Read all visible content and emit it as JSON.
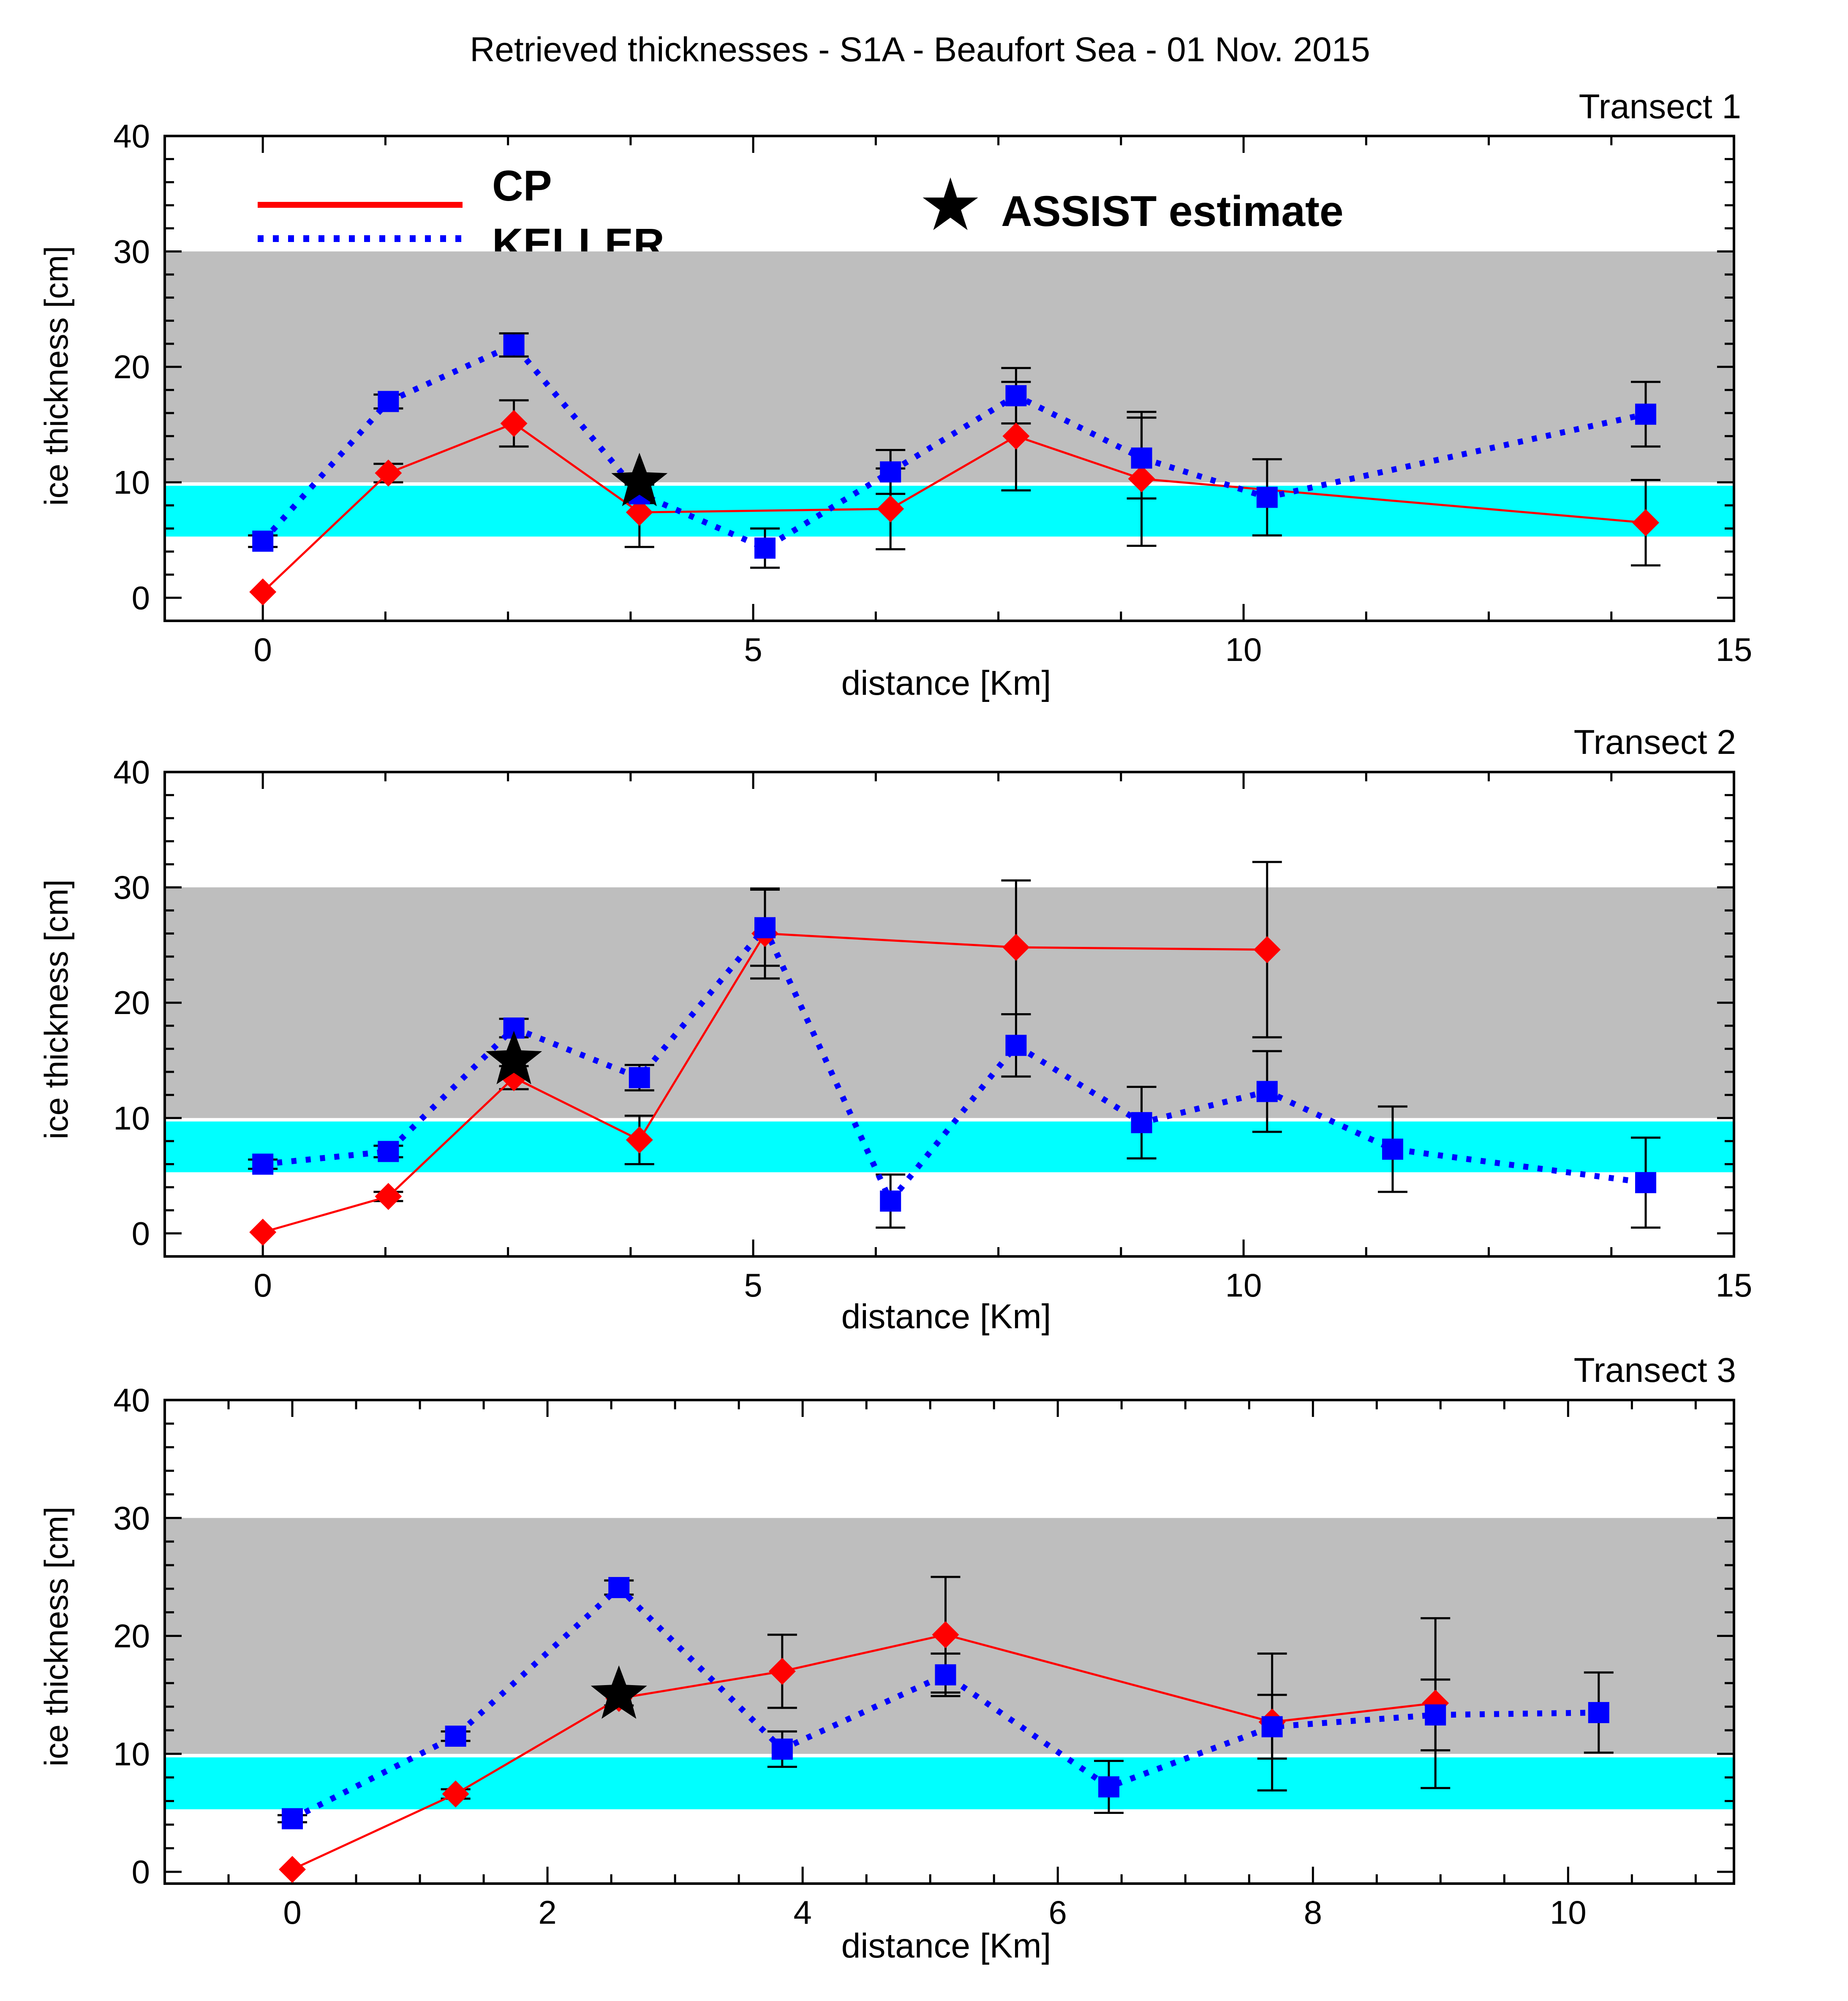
{
  "figure": {
    "title": "Retrieved thicknesses - S1A - Beaufort Sea - 01 Nov. 2015"
  },
  "legend": {
    "cp_label": "CP",
    "keller_label": "KELLER",
    "assist_label": "ASSIST estimate"
  },
  "colors": {
    "cp": "#ff0000",
    "keller": "#0000ff",
    "gray_band": "#bebebe",
    "cyan_band": "#00ffff",
    "star": "#000000"
  },
  "chart_data": [
    {
      "type": "line",
      "panel_title": "Transect 1",
      "xlabel": "distance [Km]",
      "ylabel": "ice thickness [cm]",
      "xlim": [
        -1,
        15
      ],
      "ylim": [
        -2,
        40
      ],
      "xticks": [
        0,
        5,
        10,
        15
      ],
      "yticks": [
        0,
        10,
        20,
        30,
        40
      ],
      "xtick_labels": [
        "0",
        "5",
        "10",
        "15"
      ],
      "ytick_labels": [
        "0",
        "10",
        "20",
        "30",
        "40"
      ],
      "bands": [
        {
          "name": "gray",
          "from": 10,
          "to": 30
        },
        {
          "name": "cyan",
          "from": 5.3,
          "to": 9.7
        }
      ],
      "series": [
        {
          "name": "CP",
          "points": [
            {
              "x": 0,
              "y": 0.5,
              "err": 0
            },
            {
              "x": 1.28,
              "y": 10.8,
              "err": 0.8
            },
            {
              "x": 2.56,
              "y": 15.1,
              "err": 2.0
            },
            {
              "x": 3.84,
              "y": 7.4,
              "err": 3.0
            },
            {
              "x": 6.4,
              "y": 7.7,
              "err": 3.5
            },
            {
              "x": 7.68,
              "y": 14.0,
              "err": 4.7
            },
            {
              "x": 8.96,
              "y": 10.3,
              "err": 5.8
            },
            {
              "x": 14.1,
              "y": 6.5,
              "err": 3.7
            }
          ]
        },
        {
          "name": "KELLER",
          "points": [
            {
              "x": 0,
              "y": 4.9,
              "err": 0.5
            },
            {
              "x": 1.28,
              "y": 17.0,
              "err": 0.6
            },
            {
              "x": 2.56,
              "y": 21.9,
              "err": 1.0
            },
            {
              "x": 3.84,
              "y": 9.0,
              "err": 0.8
            },
            {
              "x": 5.12,
              "y": 4.3,
              "err": 1.7
            },
            {
              "x": 6.4,
              "y": 10.9,
              "err": 1.9
            },
            {
              "x": 7.68,
              "y": 17.5,
              "err": 2.4
            },
            {
              "x": 8.96,
              "y": 12.1,
              "err": 3.5
            },
            {
              "x": 10.24,
              "y": 8.7,
              "err": 3.3
            },
            {
              "x": 14.1,
              "y": 15.9,
              "err": 2.8
            }
          ]
        }
      ],
      "assist_estimate": {
        "x": 3.84,
        "y": 10.0
      }
    },
    {
      "type": "line",
      "panel_title": "Transect 2",
      "xlabel": "distance [Km]",
      "ylabel": "ice thickness [cm]",
      "xlim": [
        -1,
        15
      ],
      "ylim": [
        -2,
        40
      ],
      "xticks": [
        0,
        5,
        10,
        15
      ],
      "yticks": [
        0,
        10,
        20,
        30,
        40
      ],
      "xtick_labels": [
        "0",
        "5",
        "10",
        "15"
      ],
      "ytick_labels": [
        "0",
        "10",
        "20",
        "30",
        "40"
      ],
      "bands": [
        {
          "name": "gray",
          "from": 10,
          "to": 30
        },
        {
          "name": "cyan",
          "from": 5.3,
          "to": 9.7
        }
      ],
      "series": [
        {
          "name": "CP",
          "points": [
            {
              "x": 0,
              "y": 0.1,
              "err": 0
            },
            {
              "x": 1.28,
              "y": 3.2,
              "err": 0.4
            },
            {
              "x": 2.56,
              "y": 13.5,
              "err": 1.0
            },
            {
              "x": 3.84,
              "y": 8.1,
              "err": 2.1
            },
            {
              "x": 5.12,
              "y": 26.0,
              "err": 3.9
            },
            {
              "x": 7.68,
              "y": 24.8,
              "err": 5.8
            },
            {
              "x": 10.24,
              "y": 24.6,
              "err": 7.6
            }
          ]
        },
        {
          "name": "KELLER",
          "points": [
            {
              "x": 0,
              "y": 6.0,
              "err": 0.4
            },
            {
              "x": 1.28,
              "y": 7.1,
              "err": 0.5
            },
            {
              "x": 2.56,
              "y": 17.8,
              "err": 0.8
            },
            {
              "x": 3.84,
              "y": 13.5,
              "err": 1.1
            },
            {
              "x": 5.12,
              "y": 26.5,
              "err": 3.3
            },
            {
              "x": 6.4,
              "y": 2.8,
              "err": 2.3
            },
            {
              "x": 7.68,
              "y": 16.3,
              "err": 2.7
            },
            {
              "x": 8.96,
              "y": 9.6,
              "err": 3.1
            },
            {
              "x": 10.24,
              "y": 12.3,
              "err": 3.5
            },
            {
              "x": 11.52,
              "y": 7.3,
              "err": 3.7
            },
            {
              "x": 14.1,
              "y": 4.4,
              "err": 3.9
            }
          ]
        }
      ],
      "assist_estimate": {
        "x": 2.56,
        "y": 15.0
      }
    },
    {
      "type": "line",
      "panel_title": "Transect 3",
      "xlabel": "distance [Km]",
      "ylabel": "ice thickness [cm]",
      "xlim": [
        -1,
        11.3
      ],
      "ylim": [
        -1,
        40
      ],
      "xticks": [
        0,
        2,
        4,
        6,
        8,
        10
      ],
      "yticks": [
        0,
        10,
        20,
        30,
        40
      ],
      "xtick_labels": [
        "0",
        "2",
        "4",
        "6",
        "8",
        "10"
      ],
      "ytick_labels": [
        "0",
        "10",
        "20",
        "30",
        "40"
      ],
      "bands": [
        {
          "name": "gray",
          "from": 10,
          "to": 30
        },
        {
          "name": "cyan",
          "from": 5.3,
          "to": 9.7
        }
      ],
      "series": [
        {
          "name": "CP",
          "points": [
            {
              "x": 0,
              "y": 0.2,
              "err": 0
            },
            {
              "x": 1.28,
              "y": 6.6,
              "err": 0.4
            },
            {
              "x": 2.56,
              "y": 14.7,
              "err": 0.6
            },
            {
              "x": 3.84,
              "y": 17.0,
              "err": 3.1
            },
            {
              "x": 5.12,
              "y": 20.1,
              "err": 4.9
            },
            {
              "x": 7.68,
              "y": 12.7,
              "err": 5.8
            },
            {
              "x": 8.96,
              "y": 14.3,
              "err": 7.2
            }
          ]
        },
        {
          "name": "KELLER",
          "points": [
            {
              "x": 0,
              "y": 4.5,
              "err": 0.3
            },
            {
              "x": 1.28,
              "y": 11.5,
              "err": 0.4
            },
            {
              "x": 2.56,
              "y": 24.1,
              "err": 0.6
            },
            {
              "x": 3.84,
              "y": 10.4,
              "err": 1.5
            },
            {
              "x": 5.12,
              "y": 16.7,
              "err": 1.8
            },
            {
              "x": 6.4,
              "y": 7.2,
              "err": 2.2
            },
            {
              "x": 7.68,
              "y": 12.3,
              "err": 2.7
            },
            {
              "x": 8.96,
              "y": 13.3,
              "err": 3.0
            },
            {
              "x": 10.24,
              "y": 13.5,
              "err": 3.4
            }
          ]
        }
      ],
      "assist_estimate": {
        "x": 2.56,
        "y": 15.0
      }
    }
  ]
}
